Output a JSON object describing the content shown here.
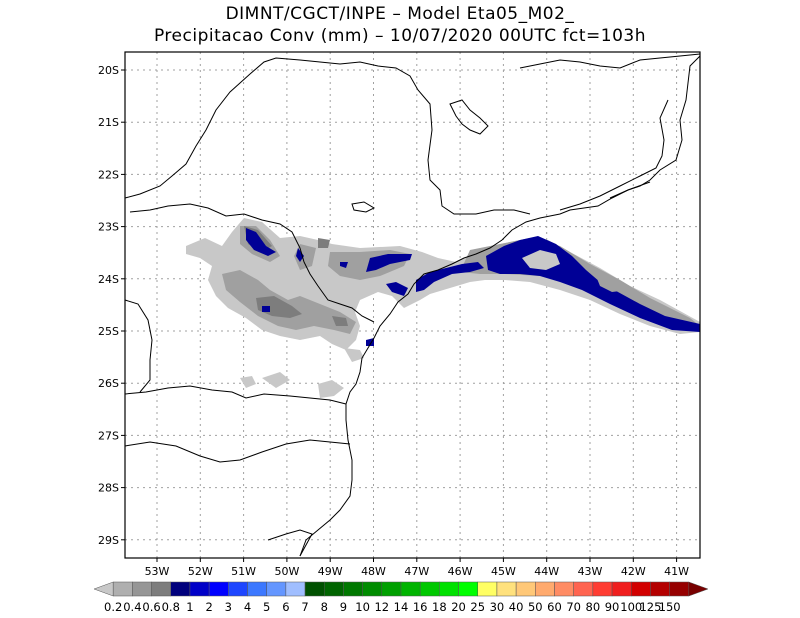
{
  "header": {
    "title_line1": "DIMNT/CGCT/INPE –  Model Eta05_M02_",
    "title_line2": "Precipitacao Conv (mm) – 10/07/2020 00UTC fct=103h"
  },
  "map": {
    "lat_labels": [
      "20S",
      "21S",
      "22S",
      "23S",
      "24S",
      "25S",
      "26S",
      "27S",
      "28S",
      "29S"
    ],
    "lon_labels": [
      "53W",
      "52W",
      "51W",
      "50W",
      "49W",
      "48W",
      "47W",
      "46W",
      "45W",
      "44W",
      "43W",
      "42W",
      "41W"
    ],
    "colors": {
      "land_border": "#000000",
      "grid": "#a0a0a0",
      "precip_gray_light": "#c8c8c8",
      "precip_gray": "#a0a0a0",
      "precip_gray_dark": "#7d7d7d",
      "precip_navy": "#000096"
    }
  },
  "legend": {
    "labels": [
      "0.2",
      "0.4",
      "0.6",
      "0.8",
      "1",
      "2",
      "3",
      "4",
      "5",
      "6",
      "7",
      "8",
      "9",
      "10",
      "12",
      "14",
      "16",
      "18",
      "20",
      "25",
      "30",
      "40",
      "50",
      "60",
      "70",
      "80",
      "90",
      "100",
      "125",
      "150"
    ],
    "colors": [
      "#c8c8c8",
      "#afafaf",
      "#969696",
      "#7d7d7d",
      "#00007d",
      "#0000c8",
      "#0000ff",
      "#1e46ff",
      "#3c78ff",
      "#6496ff",
      "#a0beff",
      "#005000",
      "#006400",
      "#007800",
      "#008c00",
      "#00a000",
      "#00b400",
      "#00c800",
      "#00e100",
      "#00ff00",
      "#ffff64",
      "#ffe17d",
      "#ffc878",
      "#ffaa6e",
      "#ff8c64",
      "#ff6450",
      "#ff3c32",
      "#f01e1e",
      "#d20000",
      "#b40000",
      "#960000",
      "#780000"
    ]
  }
}
